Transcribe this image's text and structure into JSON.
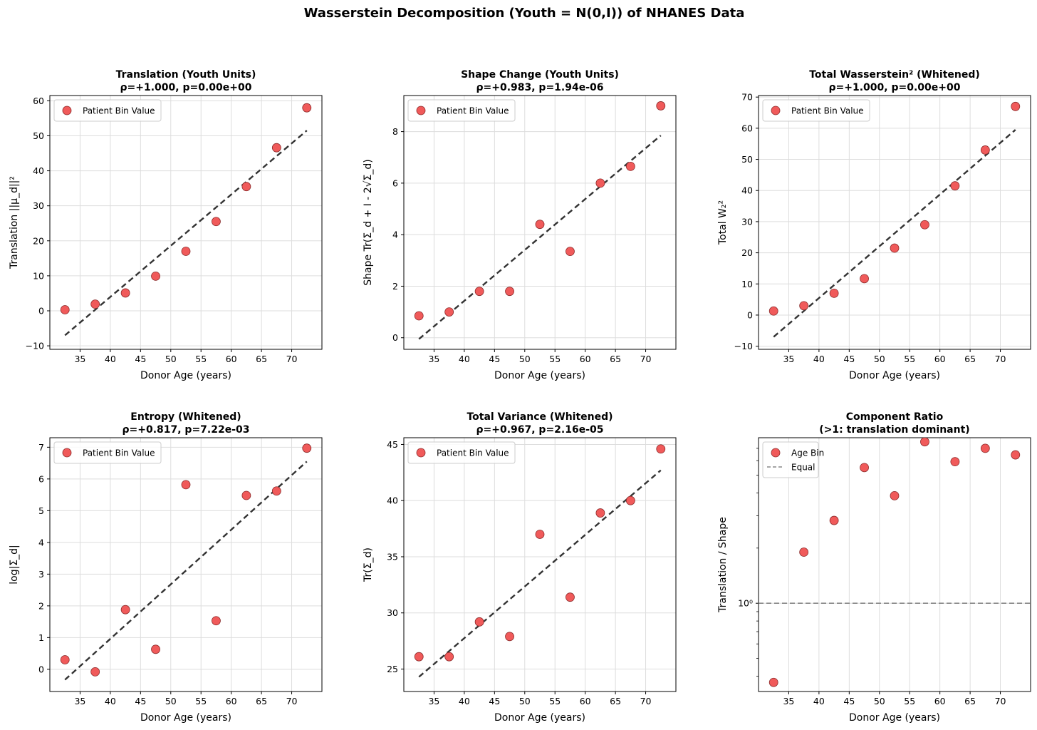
{
  "figure_title": "Wasserstein Decomposition (Youth = N(0,I)) of NHANES Data",
  "colors": {
    "marker_fill": "#f05a5a",
    "marker_edge": "#8a2a2a",
    "fit_line": "#333333",
    "equal_line": "#888888",
    "grid": "#dddddd"
  },
  "chart_data": [
    {
      "type": "scatter",
      "title": "Translation (Youth Units)",
      "subtitle": "ρ=+1.000, p=0.00e+00",
      "xlabel": "Donor Age (years)",
      "ylabel": "Translation ||μ_d||²",
      "xlim": [
        30,
        75
      ],
      "ylim": [
        -11,
        61.5
      ],
      "yscale": "linear",
      "xticks": [
        35,
        40,
        45,
        50,
        55,
        60,
        65,
        70
      ],
      "yticks": [
        -10,
        0,
        10,
        20,
        30,
        40,
        50,
        60
      ],
      "ytick_labels": [
        "−10",
        "0",
        "10",
        "20",
        "30",
        "40",
        "50",
        "60"
      ],
      "x": [
        32.5,
        37.5,
        42.5,
        47.5,
        52.5,
        57.5,
        62.5,
        67.5,
        72.5
      ],
      "y": [
        0.3,
        1.9,
        5.1,
        9.9,
        17.0,
        25.5,
        35.5,
        46.6,
        58.0
      ],
      "fit": {
        "x": [
          32.5,
          72.5
        ],
        "y": [
          -7.0,
          51.5
        ]
      },
      "legend": [
        {
          "label": "Patient Bin Value",
          "kind": "marker"
        }
      ],
      "legend_loc": "upper-left"
    },
    {
      "type": "scatter",
      "title": "Shape Change (Youth Units)",
      "subtitle": "ρ=+0.983, p=1.94e-06",
      "xlabel": "Donor Age (years)",
      "ylabel": "Shape Tr(Σ_d + I - 2√Σ_d)",
      "xlim": [
        30,
        75
      ],
      "ylim": [
        -0.45,
        9.4
      ],
      "yscale": "linear",
      "xticks": [
        35,
        40,
        45,
        50,
        55,
        60,
        65,
        70
      ],
      "yticks": [
        0,
        2,
        4,
        6,
        8
      ],
      "ytick_labels": [
        "0",
        "2",
        "4",
        "6",
        "8"
      ],
      "x": [
        32.5,
        37.5,
        42.5,
        47.5,
        52.5,
        57.5,
        62.5,
        67.5,
        72.5
      ],
      "y": [
        0.85,
        1.0,
        1.8,
        1.8,
        4.4,
        3.35,
        6.0,
        6.65,
        9.0
      ],
      "fit": {
        "x": [
          32.5,
          72.5
        ],
        "y": [
          -0.05,
          7.85
        ]
      },
      "legend": [
        {
          "label": "Patient Bin Value",
          "kind": "marker"
        }
      ],
      "legend_loc": "upper-left"
    },
    {
      "type": "scatter",
      "title": "Total Wasserstein² (Whitened)",
      "subtitle": "ρ=+1.000, p=0.00e+00",
      "xlabel": "Donor Age (years)",
      "ylabel": "Total W₂²",
      "xlim": [
        30,
        75
      ],
      "ylim": [
        -11,
        70.5
      ],
      "yscale": "linear",
      "xticks": [
        35,
        40,
        45,
        50,
        55,
        60,
        65,
        70
      ],
      "yticks": [
        -10,
        0,
        10,
        20,
        30,
        40,
        50,
        60,
        70
      ],
      "ytick_labels": [
        "−10",
        "0",
        "10",
        "20",
        "30",
        "40",
        "50",
        "60",
        "70"
      ],
      "x": [
        32.5,
        37.5,
        42.5,
        47.5,
        52.5,
        57.5,
        62.5,
        67.5,
        72.5
      ],
      "y": [
        1.3,
        3.0,
        7.0,
        11.7,
        21.5,
        29.0,
        41.5,
        53.0,
        67.0
      ],
      "fit": {
        "x": [
          32.5,
          72.5
        ],
        "y": [
          -7.0,
          59.5
        ]
      },
      "legend": [
        {
          "label": "Patient Bin Value",
          "kind": "marker"
        }
      ],
      "legend_loc": "upper-left"
    },
    {
      "type": "scatter",
      "title": "Entropy (Whitened)",
      "subtitle": "ρ=+0.817, p=7.22e-03",
      "xlabel": "Donor Age (years)",
      "ylabel": "log|Σ_d|",
      "xlim": [
        30,
        75
      ],
      "ylim": [
        -0.7,
        7.3
      ],
      "yscale": "linear",
      "xticks": [
        35,
        40,
        45,
        50,
        55,
        60,
        65,
        70
      ],
      "yticks": [
        0,
        1,
        2,
        3,
        4,
        5,
        6,
        7
      ],
      "ytick_labels": [
        "0",
        "1",
        "2",
        "3",
        "4",
        "5",
        "6",
        "7"
      ],
      "x": [
        32.5,
        37.5,
        42.5,
        47.5,
        52.5,
        57.5,
        62.5,
        67.5,
        72.5
      ],
      "y": [
        0.3,
        -0.08,
        1.88,
        0.63,
        5.82,
        1.53,
        5.48,
        5.62,
        6.97
      ],
      "fit": {
        "x": [
          32.5,
          72.5
        ],
        "y": [
          -0.33,
          6.55
        ]
      },
      "legend": [
        {
          "label": "Patient Bin Value",
          "kind": "marker"
        }
      ],
      "legend_loc": "upper-left"
    },
    {
      "type": "scatter",
      "title": "Total Variance (Whitened)",
      "subtitle": "ρ=+0.967, p=2.16e-05",
      "xlabel": "Donor Age (years)",
      "ylabel": "Tr(Σ_d)",
      "xlim": [
        30,
        75
      ],
      "ylim": [
        23.0,
        45.6
      ],
      "yscale": "linear",
      "xticks": [
        35,
        40,
        45,
        50,
        55,
        60,
        65,
        70
      ],
      "yticks": [
        25,
        30,
        35,
        40,
        45
      ],
      "ytick_labels": [
        "25",
        "30",
        "35",
        "40",
        "45"
      ],
      "x": [
        32.5,
        37.5,
        42.5,
        47.5,
        52.5,
        57.5,
        62.5,
        67.5,
        72.5
      ],
      "y": [
        26.1,
        26.1,
        29.2,
        27.9,
        37.0,
        31.4,
        38.9,
        40.0,
        44.6
      ],
      "fit": {
        "x": [
          32.5,
          72.5
        ],
        "y": [
          24.3,
          42.7
        ]
      },
      "legend": [
        {
          "label": "Patient Bin Value",
          "kind": "marker"
        }
      ],
      "legend_loc": "upper-left"
    },
    {
      "type": "scatter",
      "title": "Component Ratio",
      "subtitle": "(>1: translation dominant)",
      "xlabel": "Donor Age (years)",
      "ylabel": "Translation / Shape",
      "xlim": [
        30,
        75
      ],
      "ylim": [
        0.33,
        8.0
      ],
      "yscale": "log",
      "xticks": [
        35,
        40,
        45,
        50,
        55,
        60,
        65,
        70
      ],
      "yticks": [
        1
      ],
      "ytick_labels": [
        "10⁰"
      ],
      "x": [
        32.5,
        37.5,
        42.5,
        47.5,
        52.5,
        57.5,
        62.5,
        67.5,
        72.5
      ],
      "y": [
        0.37,
        1.9,
        2.83,
        5.5,
        3.86,
        7.6,
        5.92,
        7.0,
        6.45
      ],
      "hline": {
        "y": 1,
        "label": "Equal"
      },
      "legend": [
        {
          "label": "Age Bin",
          "kind": "marker"
        },
        {
          "label": "Equal",
          "kind": "dashed"
        }
      ],
      "legend_loc": "upper-left"
    }
  ]
}
